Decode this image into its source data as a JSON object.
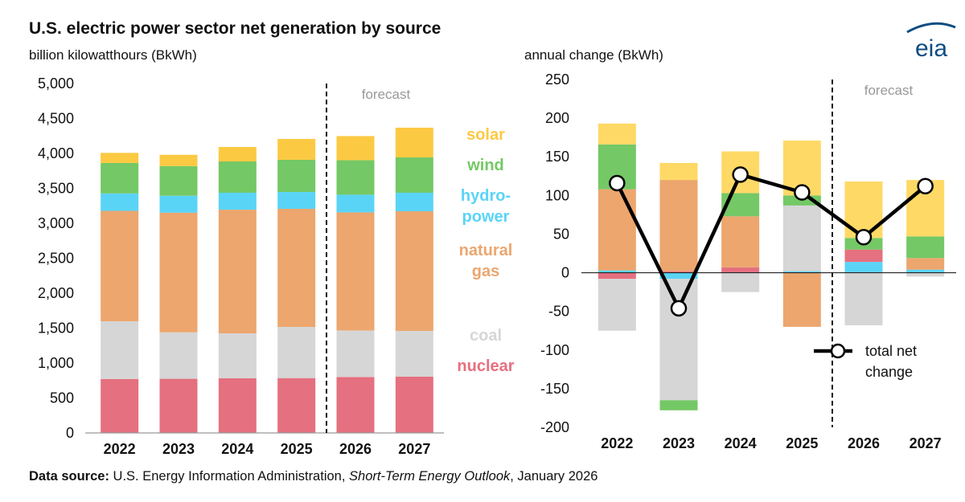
{
  "title": "U.S. electric power sector net generation by source",
  "logo": "eia",
  "footer": {
    "label": "Data source:",
    "text": "U.S. Energy Information Administration,",
    "publication": "Short-Term Energy Outlook",
    "date": ", January 2026"
  },
  "chart_data": [
    {
      "type": "stacked-bar",
      "y_label": "billion kilowatthours (BkWh)",
      "annotation": "forecast",
      "categories": [
        "2022",
        "2023",
        "2024",
        "2025",
        "2026",
        "2027"
      ],
      "ylim": [
        0,
        5000
      ],
      "yticks": [
        0,
        500,
        {
          "value": 1000,
          "label": "1,000"
        },
        {
          "value": 1500,
          "label": "1,500"
        },
        {
          "value": 2000,
          "label": "2,000"
        },
        {
          "value": 2500,
          "label": "2,500"
        },
        {
          "value": 3000,
          "label": "3,000"
        },
        {
          "value": 3500,
          "label": "3,500"
        },
        {
          "value": 4000,
          "label": "4,000"
        },
        {
          "value": 4500,
          "label": "4,500"
        },
        {
          "value": 5000,
          "label": "5,000"
        }
      ],
      "series": [
        {
          "name": "nuclear",
          "color": "#e5707f",
          "values": [
            772,
            775,
            782,
            785,
            800,
            805
          ]
        },
        {
          "name": "coal",
          "color": "#d6d6d6",
          "values": [
            826,
            665,
            643,
            732,
            666,
            655
          ]
        },
        {
          "name": "natural\ngas",
          "color": "#eca66e",
          "values": [
            1580,
            1712,
            1770,
            1690,
            1690,
            1712
          ]
        },
        {
          "name": "hydro-\npower",
          "color": "#5ad4f6",
          "values": [
            250,
            242,
            242,
            241,
            253,
            265
          ]
        },
        {
          "name": "wind",
          "color": "#74c865",
          "values": [
            435,
            425,
            448,
            460,
            494,
            506
          ]
        },
        {
          "name": "solar",
          "color": "#fcc943",
          "values": [
            145,
            161,
            207,
            299,
            345,
            425
          ]
        }
      ]
    },
    {
      "type": "stacked-bar-line",
      "y_label": "annual change (BkWh)",
      "annotation": "forecast",
      "categories": [
        "2022",
        "2023",
        "2024",
        "2025",
        "2026",
        "2027"
      ],
      "ylim": [
        -200,
        250
      ],
      "yticks": [
        -200,
        -150,
        -100,
        -50,
        0,
        50,
        100,
        150,
        200,
        250
      ],
      "series": [
        {
          "color": "#5ad4f6",
          "values": [
            3,
            -8,
            0,
            2,
            14,
            4
          ]
        },
        {
          "color": "#e5707f",
          "values": [
            -8,
            2,
            7,
            0,
            16,
            0
          ]
        },
        {
          "color": "#eca66e",
          "values": [
            105,
            118,
            66,
            -70,
            0,
            15
          ]
        },
        {
          "color": "#d6d6d6",
          "values": [
            -67,
            -157,
            -25,
            85,
            -68,
            -5
          ]
        },
        {
          "color": "#74c865",
          "values": [
            58,
            -13,
            30,
            13,
            15,
            28
          ]
        },
        {
          "color": "#ffd966",
          "values": [
            27,
            22,
            54,
            71,
            73,
            73
          ]
        }
      ],
      "line": {
        "name": "total net\nchange",
        "color": "#000000",
        "values": [
          116,
          -46,
          127,
          104,
          46,
          112
        ]
      }
    }
  ]
}
